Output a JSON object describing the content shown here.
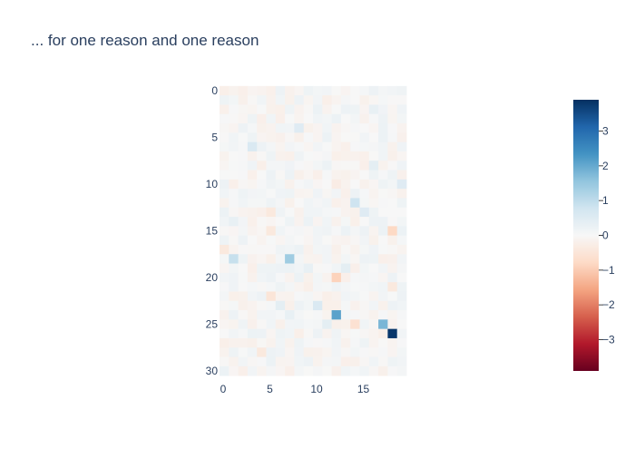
{
  "chart_data": {
    "type": "heatmap",
    "title": "... for one reason and one reason",
    "xlabel": "",
    "ylabel": "",
    "n_cols": 20,
    "n_rows": 31,
    "x_ticks": [
      0,
      5,
      10,
      15
    ],
    "y_ticks": [
      0,
      5,
      10,
      15,
      20,
      25,
      30
    ],
    "zmin": -3.9,
    "zmax": 3.9,
    "colorbar": {
      "ticks": [
        3,
        2,
        1,
        0,
        -1,
        -2,
        -3
      ],
      "tick_labels": [
        "3",
        "2",
        "1",
        "0",
        "−1",
        "−2",
        "−3"
      ]
    },
    "colorscale": [
      "#67001f",
      "#b2182b",
      "#d6604d",
      "#f4a582",
      "#fddbc7",
      "#f7f7f7",
      "#d1e5f0",
      "#92c5de",
      "#4393c3",
      "#2166ac",
      "#053061"
    ],
    "highlights": [
      {
        "row": 26,
        "col": 18,
        "value": 3.8
      },
      {
        "row": 24,
        "col": 12,
        "value": 2.1
      },
      {
        "row": 25,
        "col": 17,
        "value": 1.8
      },
      {
        "row": 18,
        "col": 7,
        "value": 1.4
      },
      {
        "row": 18,
        "col": 1,
        "value": 0.9
      },
      {
        "row": 12,
        "col": 14,
        "value": 0.8
      },
      {
        "row": 23,
        "col": 10,
        "value": 0.6
      },
      {
        "row": 4,
        "col": 8,
        "value": 0.5
      },
      {
        "row": 6,
        "col": 3,
        "value": 0.6
      },
      {
        "row": 20,
        "col": 12,
        "value": -0.9
      },
      {
        "row": 15,
        "col": 18,
        "value": -0.8
      },
      {
        "row": 25,
        "col": 14,
        "value": -0.6
      },
      {
        "row": 10,
        "col": 19,
        "value": 0.5
      },
      {
        "row": 13,
        "col": 15,
        "value": 0.5
      },
      {
        "row": 8,
        "col": 16,
        "value": 0.4
      },
      {
        "row": 2,
        "col": 16,
        "value": 0.3
      },
      {
        "row": 14,
        "col": 1,
        "value": 0.3
      },
      {
        "row": 19,
        "col": 9,
        "value": 0.3
      },
      {
        "row": 19,
        "col": 13,
        "value": 0.4
      },
      {
        "row": 23,
        "col": 6,
        "value": 0.4
      },
      {
        "row": 24,
        "col": 7,
        "value": 0.3
      },
      {
        "row": 25,
        "col": 11,
        "value": 0.4
      },
      {
        "row": 28,
        "col": 4,
        "value": -0.4
      },
      {
        "row": 22,
        "col": 5,
        "value": -0.5
      },
      {
        "row": 13,
        "col": 5,
        "value": -0.4
      },
      {
        "row": 15,
        "col": 5,
        "value": -0.4
      },
      {
        "row": 17,
        "col": 0,
        "value": -0.4
      },
      {
        "row": 21,
        "col": 18,
        "value": -0.4
      },
      {
        "row": 6,
        "col": 13,
        "value": -0.2
      },
      {
        "row": 10,
        "col": 12,
        "value": -0.3
      }
    ]
  }
}
